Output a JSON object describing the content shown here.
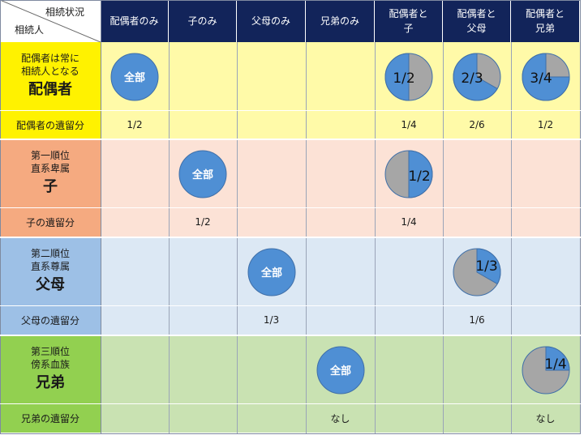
{
  "colors": {
    "header_bg": "#12245a",
    "spouse_label": "#fff200",
    "spouse_row": "#fffaa8",
    "child_label": "#f5aa80",
    "child_row": "#fce2d6",
    "parent_label": "#9dc0e6",
    "parent_row": "#dce8f4",
    "sibling_label": "#92d050",
    "sibling_row": "#c9e2b2",
    "pie_blue": "#4f8fd4",
    "pie_gray": "#a6a6a6"
  },
  "header": {
    "corner_top": "相続状況",
    "corner_bottom": "相続人",
    "columns": [
      {
        "line1": "配偶者のみ",
        "line2": ""
      },
      {
        "line1": "子のみ",
        "line2": ""
      },
      {
        "line1": "父母のみ",
        "line2": ""
      },
      {
        "line1": "兄弟のみ",
        "line2": ""
      },
      {
        "line1": "配偶者と",
        "line2": "子"
      },
      {
        "line1": "配偶者と",
        "line2": "父母"
      },
      {
        "line1": "配偶者と",
        "line2": "兄弟"
      }
    ]
  },
  "groups": [
    {
      "key": "spouse",
      "label_small": [
        "配偶者は常に",
        "相続人となる"
      ],
      "label_big": "配偶者",
      "share_label": "配偶者の遺留分",
      "shares": [
        "1/2",
        "",
        "",
        "",
        "1/4",
        "2/6",
        "1/2"
      ],
      "pies": [
        {
          "col": 0,
          "full": true,
          "text": "全部"
        },
        {
          "col": 4,
          "fraction": 0.5,
          "start": "left",
          "text": "1/2"
        },
        {
          "col": 5,
          "fraction": 0.6667,
          "start": "left",
          "text": "2/3"
        },
        {
          "col": 6,
          "fraction": 0.75,
          "start": "left",
          "text": "3/4"
        }
      ]
    },
    {
      "key": "child",
      "label_small": [
        "第一順位",
        "直系卑属"
      ],
      "label_big": "子",
      "share_label": "子の遺留分",
      "shares": [
        "",
        "1/2",
        "",
        "",
        "1/4",
        "",
        ""
      ],
      "pies": [
        {
          "col": 1,
          "full": true,
          "text": "全部"
        },
        {
          "col": 4,
          "fraction": 0.5,
          "start": "right",
          "text": "1/2"
        }
      ]
    },
    {
      "key": "parent",
      "label_small": [
        "第二順位",
        "直系尊属"
      ],
      "label_big": "父母",
      "share_label": "父母の遺留分",
      "shares": [
        "",
        "",
        "1/3",
        "",
        "",
        "1/6",
        ""
      ],
      "pies": [
        {
          "col": 2,
          "full": true,
          "text": "全部"
        },
        {
          "col": 5,
          "fraction": 0.3333,
          "start": "right",
          "text": "1/3"
        }
      ]
    },
    {
      "key": "sibling",
      "label_small": [
        "第三順位",
        "傍系血族"
      ],
      "label_big": "兄弟",
      "share_label": "兄弟の遺留分",
      "shares": [
        "",
        "",
        "",
        "なし",
        "",
        "",
        "なし"
      ],
      "pies": [
        {
          "col": 3,
          "full": true,
          "text": "全部"
        },
        {
          "col": 6,
          "fraction": 0.25,
          "start": "right",
          "text": "1/4"
        }
      ]
    }
  ]
}
